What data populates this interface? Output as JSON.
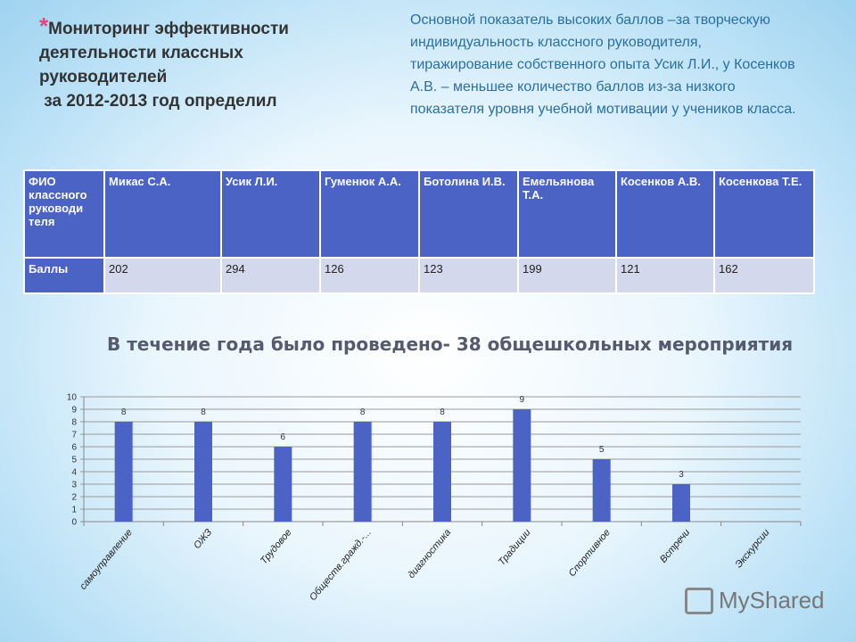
{
  "title": {
    "star": "*",
    "lines": [
      "Мониторинг эффективности",
      "деятельности классных",
      "руководителей",
      "за 2012-2013 год определил"
    ]
  },
  "note": "Основной показатель высоких баллов –за творческую индивидуальность классного руководителя, тиражирование собственного опыта Усик Л.И., у Косенков А.В. – меньшее количество баллов из-за низкого показателя уровня учебной мотивации у учеников класса.",
  "table": {
    "header": [
      "ФИО классного руководи теля",
      "Микас С.А.",
      "Усик Л.И.",
      "Гуменюк А.А.",
      "Ботолина И.В.",
      "Емельянова Т.А.",
      "Косенков А.В.",
      "Косенкова Т.Е."
    ],
    "row": [
      "Баллы",
      "202",
      "294",
      "126",
      "123",
      "199",
      "121",
      "162"
    ]
  },
  "subtitle": "В течение года было проведено- 38 общешкольных мероприятия",
  "chart_data": {
    "type": "bar",
    "categories": [
      "самоуправление",
      "ОЖЗ",
      "Трудовое",
      "Обществ.гражд.-...",
      "диагностика",
      "Традиции",
      "Спортивное",
      "Встречи",
      "Экскурсии"
    ],
    "values": [
      8,
      8,
      6,
      8,
      8,
      9,
      5,
      3,
      null
    ],
    "ylim": [
      0,
      10
    ],
    "yticks": [
      0,
      1,
      2,
      3,
      4,
      5,
      6,
      7,
      8,
      9,
      10
    ],
    "grid": true,
    "bar_color": "#4a63c5"
  },
  "watermark": "MyShared"
}
